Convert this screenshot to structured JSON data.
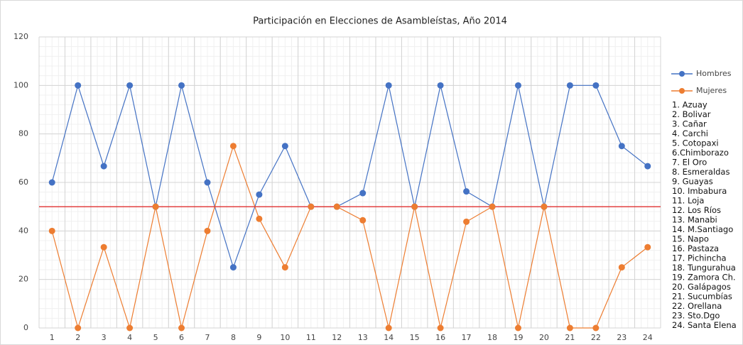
{
  "chart_data": {
    "type": "line",
    "title": "Participación en Elecciones de Asambleístas, Año 2014",
    "categories": [
      "1",
      "2",
      "3",
      "4",
      "5",
      "6",
      "7",
      "8",
      "9",
      "10",
      "11",
      "12",
      "13",
      "14",
      "15",
      "16",
      "17",
      "18",
      "19",
      "20",
      "21",
      "22",
      "23",
      "24"
    ],
    "series": [
      {
        "name": "Hombres",
        "color": "#4472c4",
        "values": [
          60,
          100,
          66.7,
          100,
          50,
          100,
          60,
          25,
          55,
          75,
          50,
          50,
          55.6,
          100,
          50,
          100,
          56.3,
          50,
          100,
          50,
          100,
          100,
          75,
          66.7
        ]
      },
      {
        "name": "Mujeres",
        "color": "#ed7d31",
        "values": [
          40,
          0,
          33.3,
          0,
          50,
          0,
          40,
          75,
          45,
          25,
          50,
          50,
          44.4,
          0,
          50,
          0,
          43.8,
          50,
          0,
          50,
          0,
          0,
          25,
          33.3
        ]
      }
    ],
    "ylim": [
      0,
      120
    ],
    "yticks": [
      0,
      20,
      40,
      60,
      80,
      100,
      120
    ],
    "grid": true,
    "legend": "right",
    "reference_line": {
      "value": 50,
      "color": "#e03030"
    },
    "legend_notes": [
      "1. Azuay",
      "2. Bolivar",
      "3. Cañar",
      "4. Carchi",
      "5. Cotopaxi",
      "6.Chimborazo",
      "7. El Oro",
      "8. Esmeraldas",
      "9. Guayas",
      "10. Imbabura",
      "11. Loja",
      "12. Los Ríos",
      "13. Manabi",
      "14. M.Santiago",
      "15. Napo",
      "16. Pastaza",
      "17. Pichincha",
      "18. Tungurahua",
      "19. Zamora Ch.",
      "20. Galápagos",
      "21. Sucumbías",
      "22. Orellana",
      "23. Sto.Dgo",
      "24. Santa Elena"
    ]
  }
}
